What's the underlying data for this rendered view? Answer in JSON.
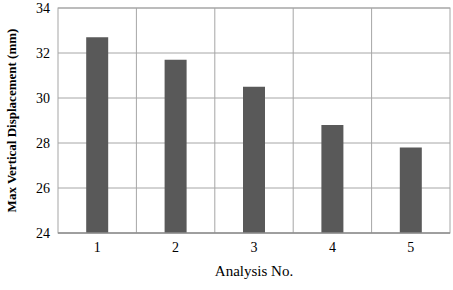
{
  "chart_data": {
    "type": "bar",
    "x_label": "Analysis No.",
    "y_label": "Max Vertical Displacement (mm)",
    "categories": [
      "1",
      "2",
      "3",
      "4",
      "5"
    ],
    "values": [
      32.7,
      31.7,
      30.5,
      28.8,
      27.8
    ],
    "color": "#595959",
    "ylim": [
      24,
      34
    ],
    "yticks": [
      24,
      26,
      28,
      30,
      32,
      34
    ],
    "grid": true
  }
}
